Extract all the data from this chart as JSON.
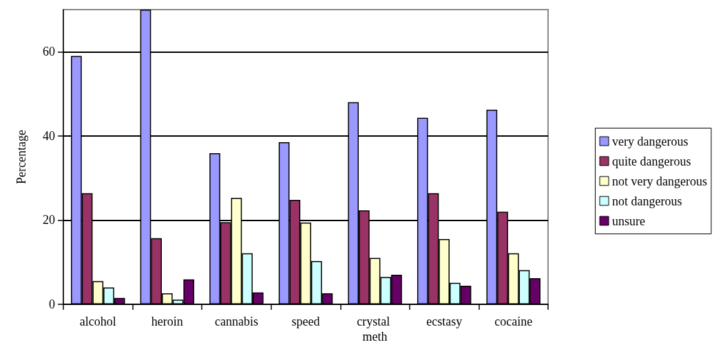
{
  "chart_data": {
    "type": "bar",
    "ylabel": "Percentage",
    "categories": [
      "alcohol",
      "heroin",
      "cannabis",
      "speed",
      "crystal meth",
      "ecstasy",
      "cocaine"
    ],
    "series": [
      {
        "name": "very dangerous",
        "color": "#9999ff",
        "values": [
          59.0,
          70,
          35.9,
          38.5,
          48.0,
          44.3,
          46.2
        ]
      },
      {
        "name": "quite dangerous",
        "color": "#993366",
        "values": [
          26.4,
          15.7,
          19.5,
          24.8,
          22.3,
          26.4,
          22.0
        ]
      },
      {
        "name": "not very dangerous",
        "color": "#ffffcc",
        "values": [
          5.5,
          2.6,
          25.3,
          19.4,
          11.0,
          15.5,
          12.1
        ]
      },
      {
        "name": "not dangerous",
        "color": "#ccffff",
        "values": [
          4.0,
          1.1,
          12.1,
          10.3,
          6.5,
          5.1,
          8.1
        ]
      },
      {
        "name": "unsure",
        "color": "#660066",
        "values": [
          1.5,
          5.9,
          2.8,
          2.6,
          7.0,
          4.4,
          6.2
        ]
      }
    ],
    "ylim": [
      0,
      70
    ],
    "yticks": [
      0,
      20,
      40,
      60
    ],
    "grid": "y",
    "legend": "right"
  }
}
